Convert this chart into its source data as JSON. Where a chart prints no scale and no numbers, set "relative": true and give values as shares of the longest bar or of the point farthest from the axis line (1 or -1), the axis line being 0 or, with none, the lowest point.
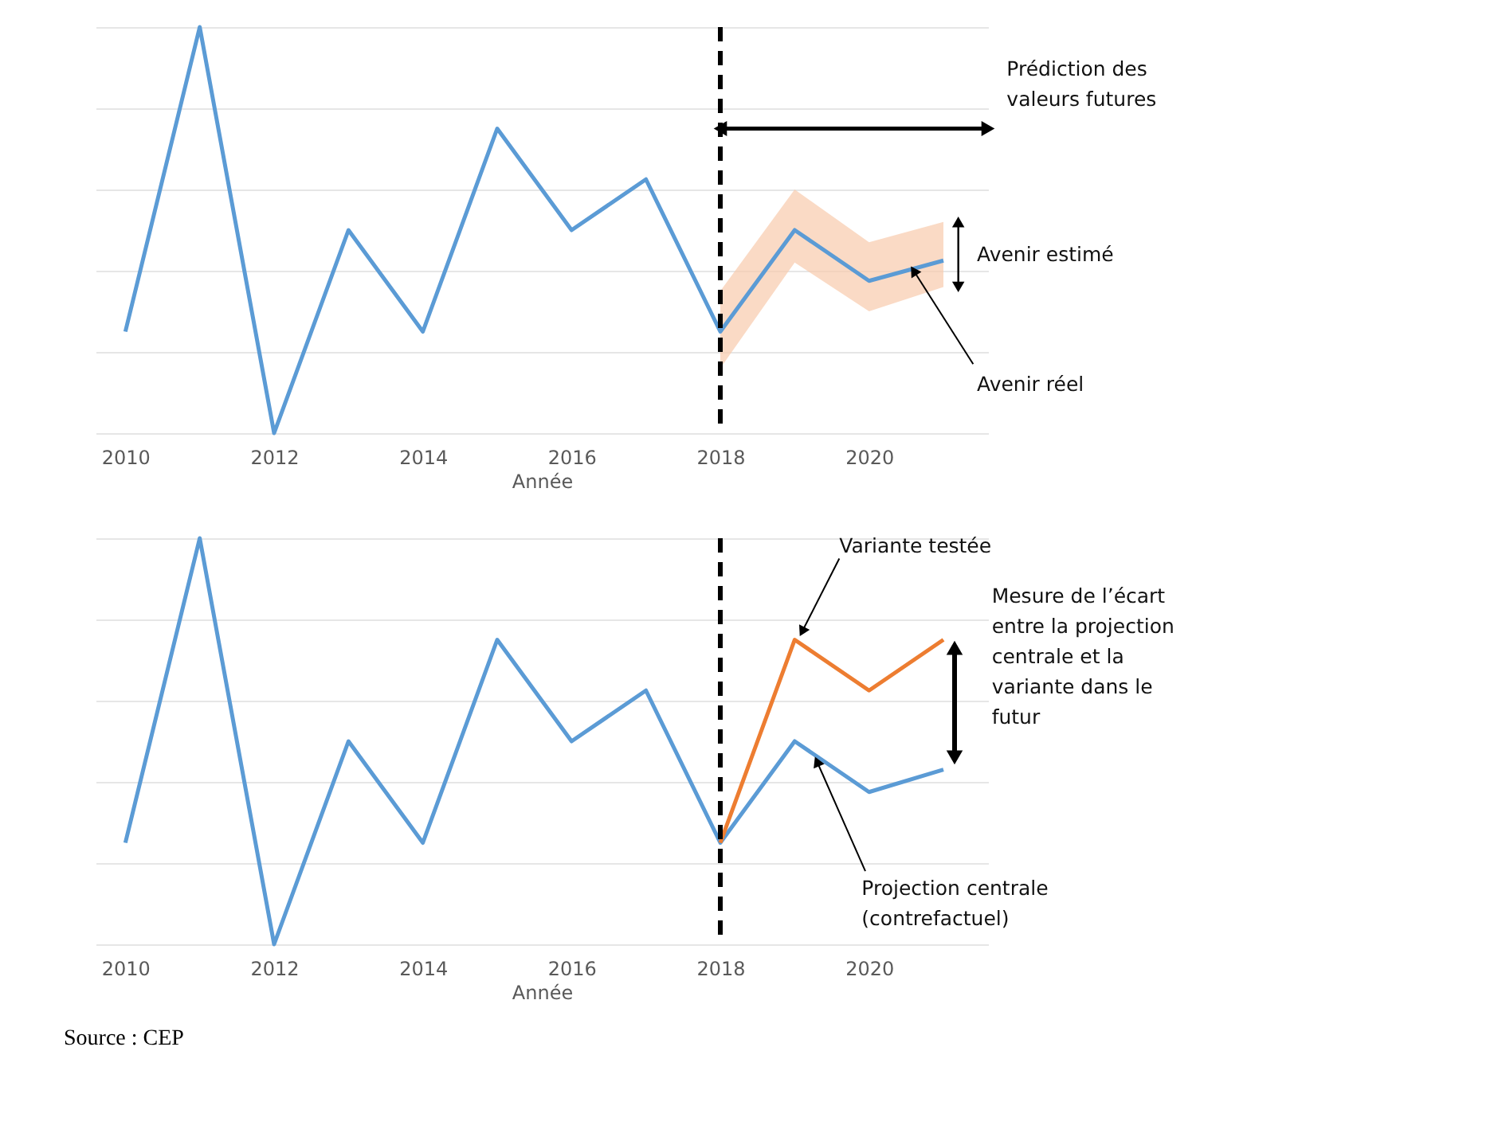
{
  "chart_data": [
    {
      "type": "line",
      "xlabel": "Année",
      "x": [
        2010,
        2011,
        2012,
        2013,
        2014,
        2015,
        2016,
        2017,
        2018,
        2019,
        2020,
        2021
      ],
      "xlim": [
        2009.6,
        2021.6
      ],
      "xticks": [
        2010,
        2012,
        2014,
        2016,
        2018,
        2020
      ],
      "relative": true,
      "tick_labels": "x",
      "grid": "y",
      "series": [
        {
          "color": "#5b9bd5",
          "values": [
            0.25,
            1,
            0,
            0.5,
            0.25,
            0.75,
            0.5,
            0.625,
            0.25,
            0.5,
            0.375,
            0.425
          ],
          "lower": [
            null,
            null,
            null,
            null,
            null,
            null,
            null,
            null,
            0.16,
            0.42,
            0.3,
            0.36
          ],
          "upper": [
            null,
            null,
            null,
            null,
            null,
            null,
            null,
            null,
            0.35,
            0.6,
            0.47,
            0.52
          ]
        }
      ],
      "ref_lines": [
        {
          "axis": "x",
          "value": 2018,
          "color": "#000000",
          "line_style": "dashed"
        }
      ],
      "annotations": [
        "Prédiction des valeurs futures",
        "Avenir estimé",
        {
          "text": "Avenir réel",
          "x": 2020.6,
          "y": 0.4
        }
      ]
    },
    {
      "type": "line",
      "xlabel": "Année",
      "x": [
        2010,
        2011,
        2012,
        2013,
        2014,
        2015,
        2016,
        2017,
        2018,
        2019,
        2020,
        2021
      ],
      "xlim": [
        2009.6,
        2021.6
      ],
      "xticks": [
        2010,
        2012,
        2014,
        2016,
        2018,
        2020
      ],
      "relative": true,
      "tick_labels": "x",
      "grid": "y",
      "series": [
        {
          "color": "#5b9bd5",
          "values": [
            0.25,
            1,
            0,
            0.5,
            0.25,
            0.75,
            0.5,
            0.625,
            0.25,
            0.5,
            0.375,
            0.43
          ]
        },
        {
          "color": "#ed7d31",
          "x": [
            2018,
            2019,
            2020,
            2021
          ],
          "values": [
            0.25,
            0.75,
            0.625,
            0.75
          ]
        }
      ],
      "ref_lines": [
        {
          "axis": "x",
          "value": 2018,
          "color": "#000000",
          "line_style": "dashed"
        }
      ],
      "annotations": [
        {
          "text": "Variante testée",
          "x": 2019.1,
          "y": 0.77
        },
        "Mesure de l’écart entre la projection centrale et la variante dans le futur",
        {
          "text": "Projection centrale (contrefactuel)",
          "x": 2019.3,
          "y": 0.45
        },
        "Source : CEP"
      ]
    }
  ]
}
